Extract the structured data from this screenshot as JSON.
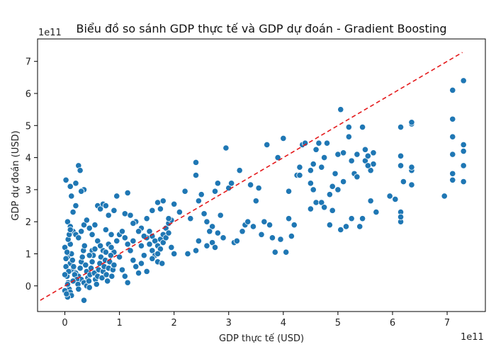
{
  "chart_data": {
    "type": "scatter",
    "title": "Biểu đồ so sánh GDP thực tế và GDP dự đoán - Gradient Boosting",
    "xlabel": "GDP thực tế (USD)",
    "ylabel": "GDP dự đoán (USD)",
    "x_exponent_label": "1e11",
    "y_exponent_label": "1e11",
    "xlim": [
      -0.5,
      7.7
    ],
    "ylim": [
      -0.8,
      7.7
    ],
    "x_ticks": [
      0,
      1,
      2,
      3,
      4,
      5,
      6,
      7
    ],
    "y_ticks": [
      0,
      1,
      2,
      3,
      4,
      5,
      6,
      7
    ],
    "x_tick_labels": [
      "0",
      "1",
      "2",
      "3",
      "4",
      "5",
      "6",
      "7"
    ],
    "y_tick_labels": [
      "0",
      "1",
      "2",
      "3",
      "4",
      "5",
      "6",
      "7"
    ],
    "grid": false,
    "point_color": "#1f77b4",
    "reference_line": {
      "x": [
        -0.45,
        7.28
      ],
      "y": [
        -0.45,
        7.28
      ],
      "color": "#e41a1c",
      "style": "dashed"
    },
    "points": [
      [
        0.02,
        3.3
      ],
      [
        0.1,
        3.1
      ],
      [
        0.2,
        3.2
      ],
      [
        0.25,
        3.75
      ],
      [
        0.28,
        3.6
      ],
      [
        0.35,
        3.0
      ],
      [
        0.12,
        2.8
      ],
      [
        0.2,
        2.5
      ],
      [
        0.15,
        2.3
      ],
      [
        0.3,
        2.95
      ],
      [
        0.05,
        2.0
      ],
      [
        0.1,
        1.85
      ],
      [
        0.15,
        1.7
      ],
      [
        0.2,
        1.6
      ],
      [
        0.25,
        1.5
      ],
      [
        0.3,
        1.7
      ],
      [
        0.35,
        1.9
      ],
      [
        0.4,
        2.05
      ],
      [
        0.45,
        1.8
      ],
      [
        0.5,
        1.6
      ],
      [
        0.55,
        1.9
      ],
      [
        0.6,
        2.5
      ],
      [
        0.65,
        2.4
      ],
      [
        0.7,
        2.55
      ],
      [
        0.75,
        2.5
      ],
      [
        0.6,
        1.4
      ],
      [
        0.7,
        1.1
      ],
      [
        0.8,
        1.3
      ],
      [
        0.9,
        1.05
      ],
      [
        0.5,
        1.1
      ],
      [
        0.0,
        1.2
      ],
      [
        0.05,
        0.9
      ],
      [
        0.1,
        0.7
      ],
      [
        0.15,
        0.5
      ],
      [
        0.2,
        0.4
      ],
      [
        0.25,
        0.3
      ],
      [
        0.3,
        0.2
      ],
      [
        0.35,
        0.1
      ],
      [
        0.4,
        0.0
      ],
      [
        0.45,
        -0.05
      ],
      [
        0.02,
        0.6
      ],
      [
        0.04,
        0.3
      ],
      [
        0.06,
        0.1
      ],
      [
        0.08,
        -0.1
      ],
      [
        0.1,
        -0.2
      ],
      [
        0.12,
        -0.3
      ],
      [
        0.05,
        -0.35
      ],
      [
        0.0,
        -0.15
      ],
      [
        0.03,
        -0.25
      ],
      [
        0.07,
        0.45
      ],
      [
        0.1,
        1.3
      ],
      [
        0.12,
        1.0
      ],
      [
        0.14,
        0.8
      ],
      [
        0.16,
        0.6
      ],
      [
        0.18,
        0.35
      ],
      [
        0.22,
        0.2
      ],
      [
        0.24,
        0.05
      ],
      [
        0.26,
        -0.1
      ],
      [
        0.28,
        0.55
      ],
      [
        0.3,
        0.75
      ],
      [
        0.32,
        0.9
      ],
      [
        0.34,
        1.1
      ],
      [
        0.36,
        1.25
      ],
      [
        0.38,
        0.65
      ],
      [
        0.4,
        0.45
      ],
      [
        0.42,
        0.25
      ],
      [
        0.44,
        0.15
      ],
      [
        0.46,
        0.35
      ],
      [
        0.48,
        0.55
      ],
      [
        0.5,
        0.75
      ],
      [
        0.52,
        0.95
      ],
      [
        0.54,
        0.4
      ],
      [
        0.56,
        0.2
      ],
      [
        0.58,
        0.05
      ],
      [
        0.6,
        0.3
      ],
      [
        0.62,
        0.5
      ],
      [
        0.64,
        0.7
      ],
      [
        0.66,
        0.9
      ],
      [
        0.68,
        0.25
      ],
      [
        0.7,
        0.45
      ],
      [
        0.72,
        0.6
      ],
      [
        0.74,
        0.8
      ],
      [
        0.76,
        0.35
      ],
      [
        0.78,
        0.15
      ],
      [
        0.8,
        0.55
      ],
      [
        0.82,
        0.75
      ],
      [
        0.84,
        0.95
      ],
      [
        0.86,
        0.3
      ],
      [
        0.88,
        0.5
      ],
      [
        0.9,
        0.65
      ],
      [
        0.35,
        -0.45
      ],
      [
        0.25,
        -0.1
      ],
      [
        0.15,
        0.15
      ],
      [
        0.05,
        0.05
      ],
      [
        0.0,
        0.35
      ],
      [
        0.02,
        0.85
      ],
      [
        0.04,
        1.05
      ],
      [
        0.06,
        1.45
      ],
      [
        0.08,
        1.6
      ],
      [
        0.1,
        1.75
      ],
      [
        0.45,
        0.95
      ],
      [
        0.55,
        1.15
      ],
      [
        0.65,
        1.25
      ],
      [
        0.75,
        1.05
      ],
      [
        0.85,
        1.2
      ],
      [
        0.95,
        1.4
      ],
      [
        1.0,
        0.9
      ],
      [
        1.05,
        0.5
      ],
      [
        1.1,
        0.3
      ],
      [
        1.15,
        0.1
      ],
      [
        1.0,
        1.6
      ],
      [
        1.05,
        1.7
      ],
      [
        1.1,
        1.5
      ],
      [
        1.15,
        1.3
      ],
      [
        1.2,
        1.1
      ],
      [
        1.25,
        0.8
      ],
      [
        1.3,
        0.6
      ],
      [
        1.35,
        0.4
      ],
      [
        1.4,
        0.7
      ],
      [
        1.45,
        0.95
      ],
      [
        1.1,
        2.25
      ],
      [
        1.15,
        2.9
      ],
      [
        1.2,
        2.2
      ],
      [
        1.3,
        2.0
      ],
      [
        1.4,
        1.8
      ],
      [
        1.5,
        2.1
      ],
      [
        1.6,
        2.35
      ],
      [
        1.7,
        2.6
      ],
      [
        1.75,
        2.4
      ],
      [
        1.8,
        2.65
      ],
      [
        1.5,
        1.5
      ],
      [
        1.55,
        1.3
      ],
      [
        1.6,
        1.1
      ],
      [
        1.65,
        0.95
      ],
      [
        1.7,
        0.75
      ],
      [
        1.75,
        1.45
      ],
      [
        1.8,
        1.6
      ],
      [
        1.85,
        1.8
      ],
      [
        1.9,
        1.95
      ],
      [
        1.95,
        2.05
      ],
      [
        1.55,
        1.7
      ],
      [
        1.6,
        1.55
      ],
      [
        1.65,
        1.4
      ],
      [
        1.7,
        1.25
      ],
      [
        1.75,
        1.15
      ],
      [
        1.8,
        1.35
      ],
      [
        1.85,
        1.5
      ],
      [
        1.9,
        1.65
      ],
      [
        1.95,
        1.2
      ],
      [
        2.0,
        1.0
      ],
      [
        1.5,
        0.45
      ],
      [
        1.6,
        0.85
      ],
      [
        1.7,
        1.0
      ],
      [
        1.78,
        0.7
      ],
      [
        1.9,
        2.1
      ],
      [
        2.0,
        2.55
      ],
      [
        2.1,
        2.3
      ],
      [
        2.2,
        2.95
      ],
      [
        2.25,
        1.0
      ],
      [
        2.3,
        2.1
      ],
      [
        0.95,
        2.8
      ],
      [
        0.8,
        2.2
      ],
      [
        0.9,
        2.35
      ],
      [
        0.75,
        1.75
      ],
      [
        0.85,
        1.6
      ],
      [
        1.25,
        1.95
      ],
      [
        1.35,
        1.7
      ],
      [
        1.45,
        1.55
      ],
      [
        1.25,
        1.4
      ],
      [
        1.4,
        1.25
      ],
      [
        2.4,
        3.45
      ],
      [
        2.4,
        3.85
      ],
      [
        2.45,
        2.65
      ],
      [
        2.5,
        2.85
      ],
      [
        2.55,
        2.25
      ],
      [
        2.6,
        2.0
      ],
      [
        2.4,
        1.1
      ],
      [
        2.45,
        1.4
      ],
      [
        2.6,
        1.25
      ],
      [
        2.7,
        1.35
      ],
      [
        2.75,
        1.2
      ],
      [
        2.8,
        1.65
      ],
      [
        2.85,
        2.2
      ],
      [
        2.7,
        1.85
      ],
      [
        2.65,
        1.7
      ],
      [
        2.75,
        2.95
      ],
      [
        2.8,
        3.2
      ],
      [
        2.9,
        1.5
      ],
      [
        2.95,
        4.3
      ],
      [
        3.0,
        3.05
      ],
      [
        3.05,
        3.2
      ],
      [
        3.1,
        1.35
      ],
      [
        3.15,
        1.4
      ],
      [
        3.2,
        3.6
      ],
      [
        3.25,
        1.7
      ],
      [
        3.3,
        1.9
      ],
      [
        3.35,
        2.0
      ],
      [
        3.4,
        3.15
      ],
      [
        3.45,
        1.85
      ],
      [
        3.5,
        2.65
      ],
      [
        3.55,
        3.05
      ],
      [
        3.6,
        1.6
      ],
      [
        3.65,
        2.0
      ],
      [
        3.7,
        4.4
      ],
      [
        3.75,
        1.9
      ],
      [
        3.8,
        1.5
      ],
      [
        3.85,
        1.05
      ],
      [
        3.9,
        4.0
      ],
      [
        3.95,
        1.45
      ],
      [
        4.0,
        4.6
      ],
      [
        4.05,
        1.05
      ],
      [
        4.1,
        2.1
      ],
      [
        4.1,
        2.95
      ],
      [
        4.15,
        1.55
      ],
      [
        4.2,
        1.9
      ],
      [
        4.25,
        3.45
      ],
      [
        4.3,
        3.7
      ],
      [
        4.35,
        4.4
      ],
      [
        4.4,
        4.45
      ],
      [
        4.5,
        3.2
      ],
      [
        4.5,
        2.4
      ],
      [
        4.55,
        3.0
      ],
      [
        4.55,
        3.8
      ],
      [
        4.6,
        2.6
      ],
      [
        4.65,
        4.45
      ],
      [
        4.7,
        2.6
      ],
      [
        4.7,
        3.7
      ],
      [
        4.75,
        4.0
      ],
      [
        4.8,
        4.45
      ],
      [
        4.85,
        2.85
      ],
      [
        4.85,
        1.9
      ],
      [
        4.9,
        3.1
      ],
      [
        4.9,
        2.35
      ],
      [
        4.95,
        3.5
      ],
      [
        5.0,
        4.1
      ],
      [
        5.05,
        5.5
      ],
      [
        5.1,
        3.25
      ],
      [
        5.2,
        4.95
      ],
      [
        5.2,
        4.65
      ],
      [
        5.25,
        3.9
      ],
      [
        5.3,
        3.5
      ],
      [
        5.35,
        4.1
      ],
      [
        5.4,
        1.85
      ],
      [
        5.45,
        4.95
      ],
      [
        5.5,
        4.25
      ],
      [
        5.5,
        3.9
      ],
      [
        5.55,
        4.05
      ],
      [
        5.6,
        3.6
      ],
      [
        5.65,
        4.15
      ],
      [
        5.7,
        2.3
      ],
      [
        5.05,
        1.75
      ],
      [
        5.1,
        4.15
      ],
      [
        5.15,
        1.85
      ],
      [
        5.25,
        2.1
      ],
      [
        5.35,
        3.4
      ],
      [
        5.45,
        2.1
      ],
      [
        5.6,
        2.65
      ],
      [
        5.65,
        3.8
      ],
      [
        5.95,
        2.8
      ],
      [
        6.05,
        2.7
      ],
      [
        6.15,
        4.95
      ],
      [
        6.15,
        2.3
      ],
      [
        6.15,
        2.0
      ],
      [
        6.15,
        4.05
      ],
      [
        6.15,
        3.75
      ],
      [
        6.2,
        3.25
      ],
      [
        6.35,
        5.05
      ],
      [
        6.35,
        5.1
      ],
      [
        6.35,
        3.6
      ],
      [
        6.35,
        3.7
      ],
      [
        6.35,
        3.15
      ],
      [
        6.95,
        2.8
      ],
      [
        7.1,
        6.1
      ],
      [
        7.1,
        5.2
      ],
      [
        7.1,
        4.65
      ],
      [
        7.1,
        4.1
      ],
      [
        7.1,
        3.5
      ],
      [
        7.1,
        3.3
      ],
      [
        7.3,
        6.4
      ],
      [
        7.3,
        4.4
      ],
      [
        7.3,
        4.2
      ],
      [
        7.3,
        3.75
      ],
      [
        7.3,
        3.25
      ],
      [
        6.15,
        2.15
      ],
      [
        4.3,
        3.45
      ],
      [
        4.5,
        3.6
      ],
      [
        4.75,
        2.45
      ],
      [
        5.0,
        3.0
      ],
      [
        5.55,
        3.75
      ],
      [
        4.6,
        4.25
      ]
    ]
  }
}
